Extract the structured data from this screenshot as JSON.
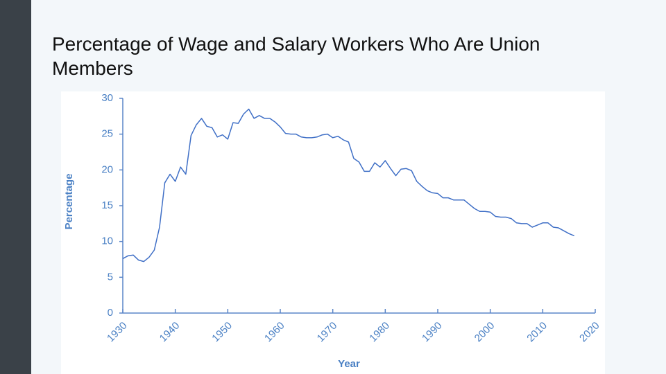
{
  "chart_data": {
    "type": "line",
    "title": "Percentage of Wage and Salary Workers Who Are Union Members",
    "x_label": "Year",
    "y_label": "Percentage",
    "x": [
      1930,
      1931,
      1932,
      1933,
      1934,
      1935,
      1936,
      1937,
      1938,
      1939,
      1940,
      1941,
      1942,
      1943,
      1944,
      1945,
      1946,
      1947,
      1948,
      1949,
      1950,
      1951,
      1952,
      1953,
      1954,
      1955,
      1956,
      1957,
      1958,
      1959,
      1960,
      1961,
      1962,
      1963,
      1964,
      1965,
      1966,
      1967,
      1968,
      1969,
      1970,
      1971,
      1972,
      1973,
      1974,
      1975,
      1976,
      1977,
      1978,
      1979,
      1980,
      1981,
      1982,
      1983,
      1984,
      1985,
      1986,
      1987,
      1988,
      1989,
      1990,
      1991,
      1992,
      1993,
      1994,
      1995,
      1996,
      1997,
      1998,
      1999,
      2000,
      2001,
      2002,
      2003,
      2004,
      2005,
      2006,
      2007,
      2008,
      2009,
      2010,
      2011,
      2012,
      2013,
      2014,
      2015,
      2016
    ],
    "values": [
      7.6,
      8.0,
      8.1,
      7.4,
      7.2,
      7.8,
      8.8,
      12.0,
      18.2,
      19.4,
      18.4,
      20.4,
      19.4,
      24.8,
      26.3,
      27.2,
      26.1,
      25.9,
      24.6,
      24.9,
      24.3,
      26.6,
      26.5,
      27.8,
      28.5,
      27.2,
      27.6,
      27.2,
      27.2,
      26.7,
      26.0,
      25.1,
      25.0,
      25.0,
      24.6,
      24.5,
      24.5,
      24.6,
      24.9,
      25.0,
      24.5,
      24.7,
      24.2,
      23.9,
      21.6,
      21.1,
      19.8,
      19.8,
      21.0,
      20.4,
      21.3,
      20.2,
      19.2,
      20.1,
      20.2,
      19.9,
      18.4,
      17.7,
      17.1,
      16.8,
      16.7,
      16.1,
      16.1,
      15.8,
      15.8,
      15.8,
      15.2,
      14.6,
      14.2,
      14.2,
      14.1,
      13.5,
      13.4,
      13.4,
      13.2,
      12.6,
      12.5,
      12.5,
      12.0,
      12.3,
      12.6,
      12.6,
      12.0,
      11.9,
      11.5,
      11.1,
      10.8
    ],
    "color": "#3f6fc6",
    "xlim": [
      1930,
      2020
    ],
    "xticks": [
      1930,
      1940,
      1950,
      1960,
      1970,
      1980,
      1990,
      2000,
      2010,
      2020
    ],
    "ylim": [
      0,
      30
    ],
    "yticks": [
      0,
      5,
      10,
      15,
      20,
      25,
      30
    ]
  }
}
